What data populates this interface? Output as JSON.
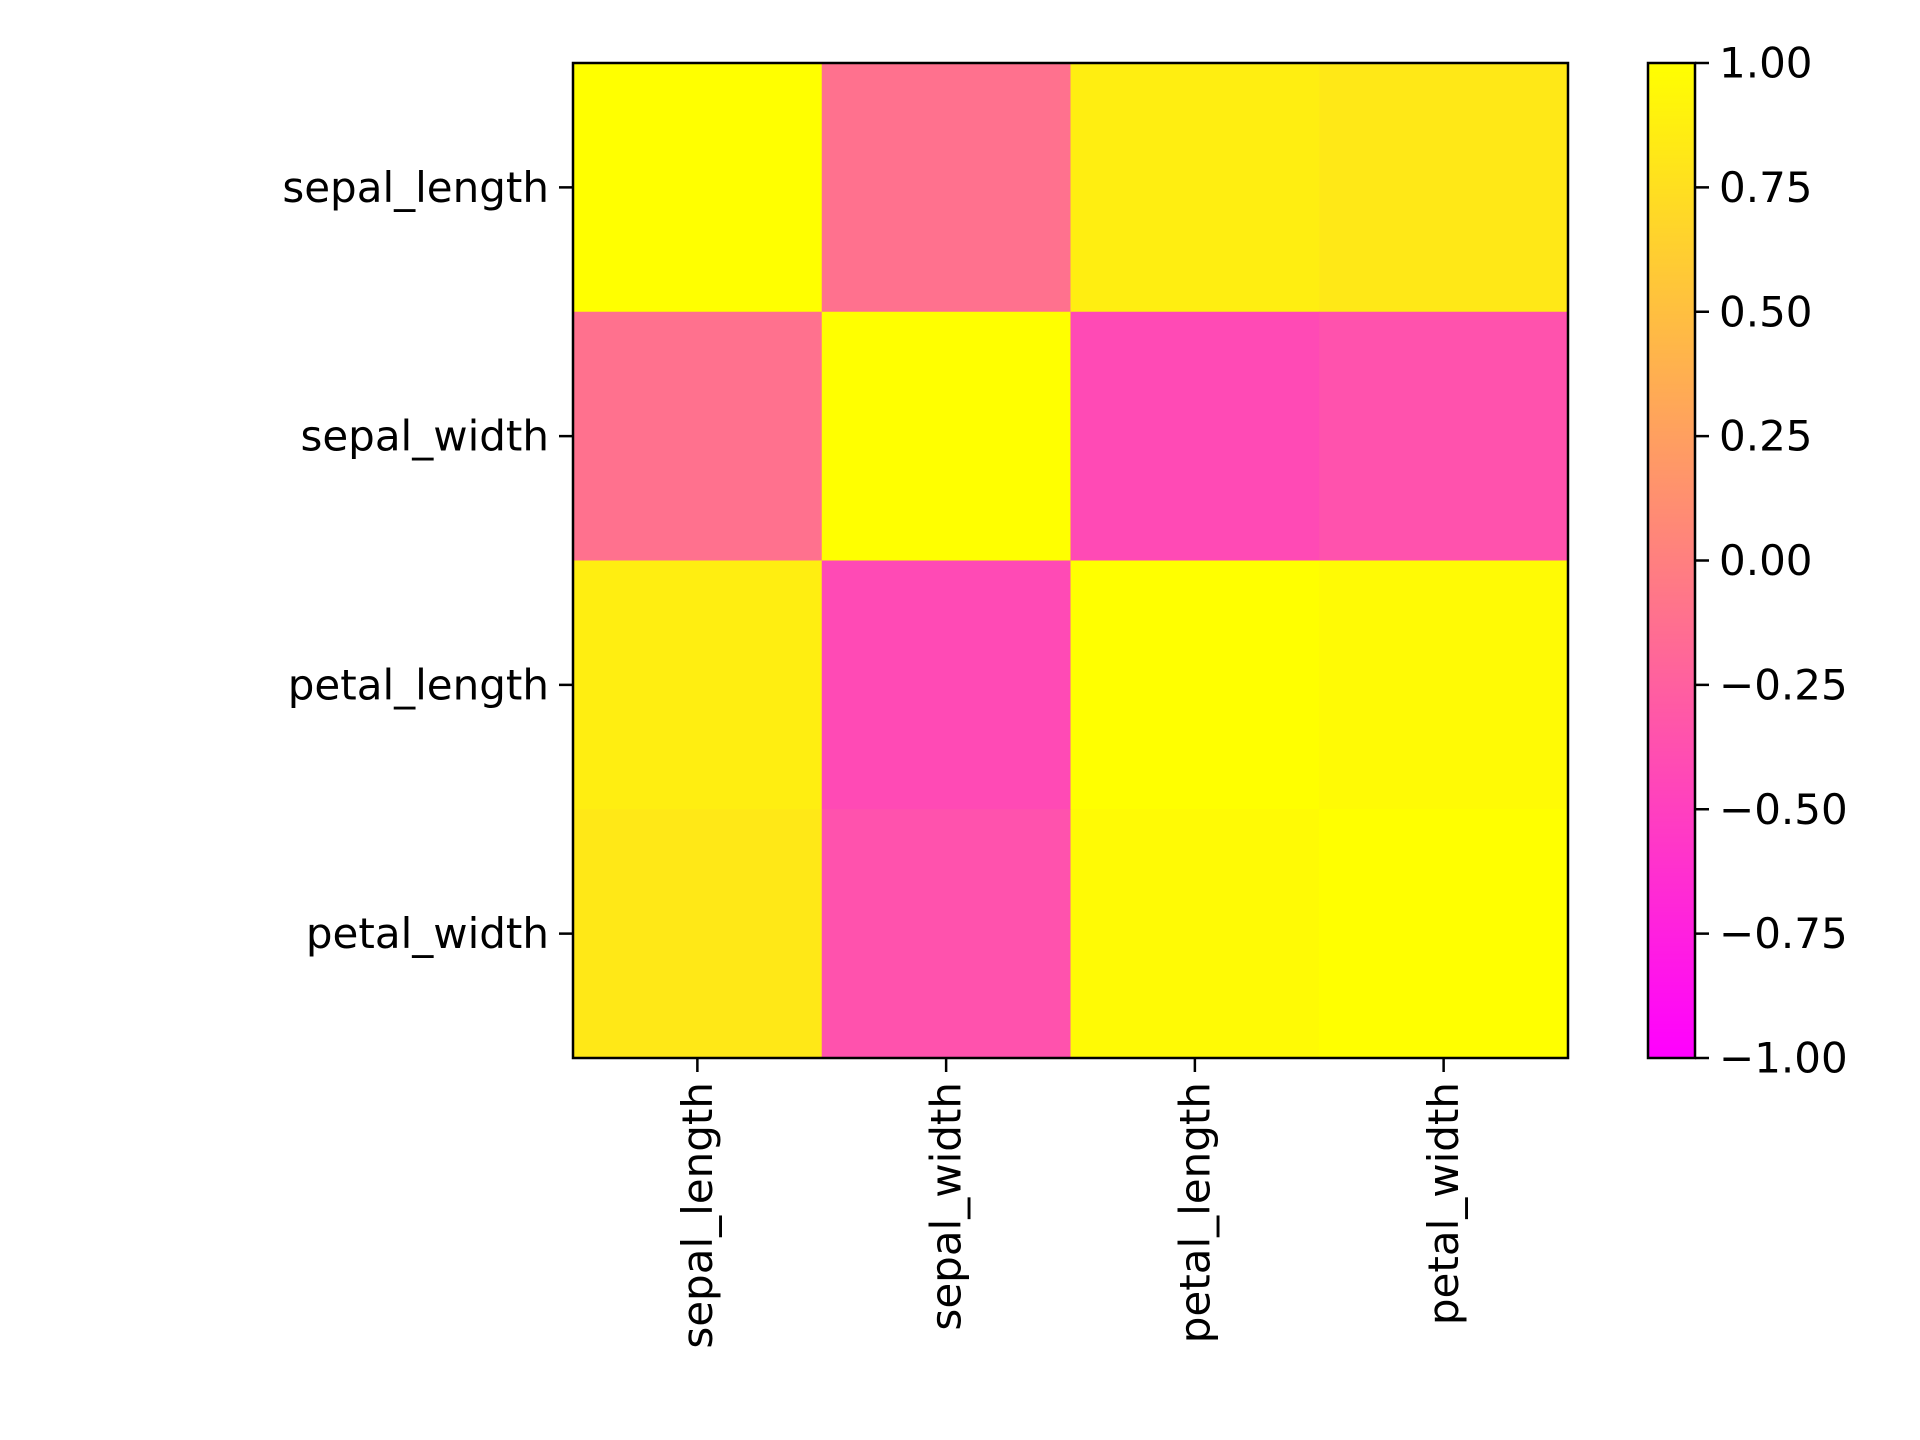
{
  "chart_data": {
    "type": "heatmap",
    "row_labels": [
      "sepal_length",
      "sepal_width",
      "petal_length",
      "petal_width"
    ],
    "col_labels": [
      "sepal_length",
      "sepal_width",
      "petal_length",
      "petal_width"
    ],
    "values": [
      [
        1.0,
        -0.11,
        0.87,
        0.82
      ],
      [
        -0.11,
        1.0,
        -0.42,
        -0.36
      ],
      [
        0.87,
        -0.42,
        1.0,
        0.96
      ],
      [
        0.82,
        -0.36,
        0.96,
        1.0
      ]
    ],
    "colormap": "spring",
    "color_min": "#ff00ff",
    "color_max": "#ffff00",
    "vmin": -1.0,
    "vmax": 1.0,
    "colorbar": {
      "ticks": [
        1.0,
        0.75,
        0.5,
        0.25,
        0.0,
        -0.25,
        -0.5,
        -0.75,
        -1.0
      ],
      "tick_labels": [
        "1.00",
        "0.75",
        "0.50",
        "0.25",
        "0.00",
        "−0.25",
        "−0.50",
        "−0.75",
        "−1.00"
      ],
      "placement": "right"
    },
    "x_tick_rotation": "vertical",
    "title": "",
    "xlabel": "",
    "ylabel": "",
    "grid": false
  }
}
